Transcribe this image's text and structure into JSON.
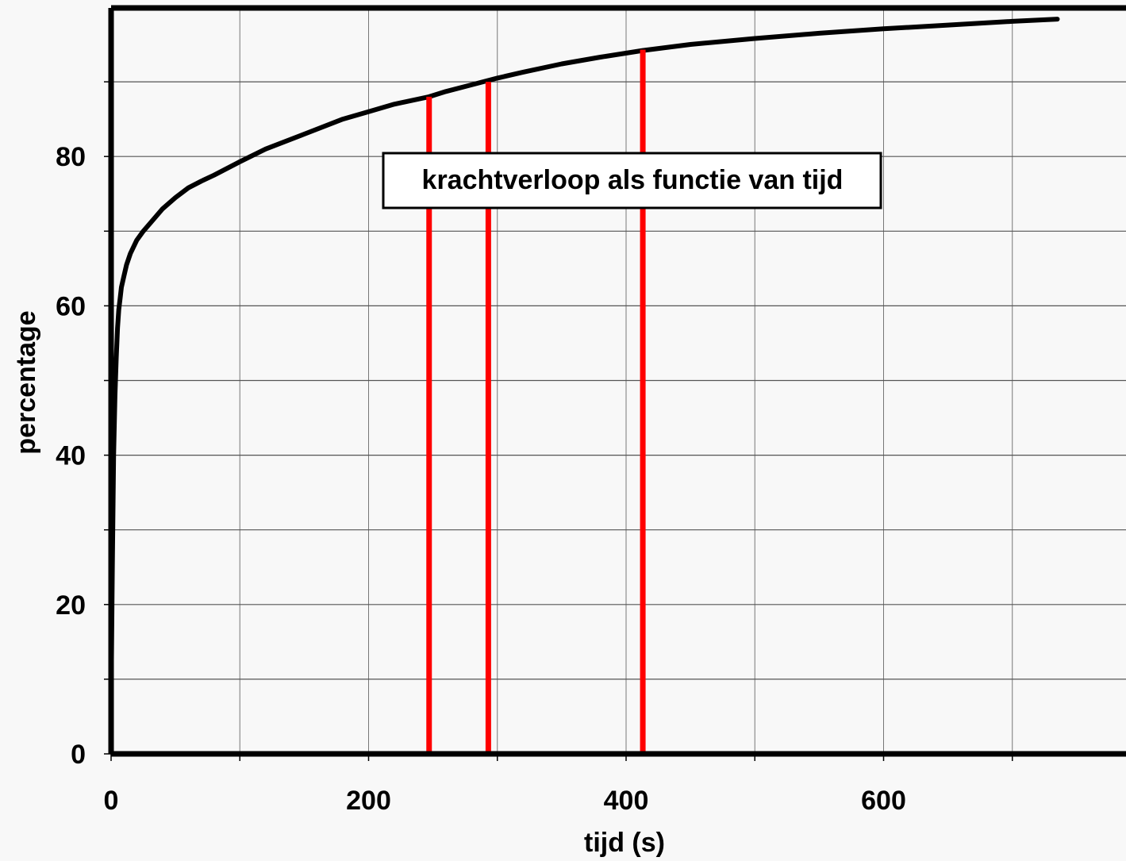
{
  "chart_data": {
    "type": "line",
    "title": "",
    "xlabel": "tijd (s)",
    "ylabel": "percentage",
    "xlim": [
      0,
      790
    ],
    "ylim": [
      0,
      100
    ],
    "grid": true,
    "x_ticks": [
      0,
      200,
      400,
      600
    ],
    "y_ticks": [
      0,
      20,
      40,
      60,
      80
    ],
    "annotation": "krachtverloop als functie van tijd",
    "series": [
      {
        "color": "#000000",
        "x": [
          0,
          1,
          2,
          3,
          4,
          5,
          6,
          7,
          8,
          10,
          12,
          15,
          20,
          25,
          30,
          40,
          50,
          60,
          70,
          80,
          100,
          120,
          150,
          180,
          200,
          220,
          247,
          260,
          280,
          300,
          320,
          350,
          380,
          413,
          450,
          500,
          550,
          600,
          650,
          700,
          735
        ],
        "y": [
          7,
          25,
          40,
          48,
          53,
          57,
          59.5,
          61,
          62.5,
          64,
          65.5,
          67,
          68.8,
          70,
          71,
          73,
          74.5,
          75.8,
          76.7,
          77.5,
          79.3,
          81,
          83,
          85,
          86,
          87,
          88,
          88.7,
          89.6,
          90.5,
          91.3,
          92.4,
          93.3,
          94.2,
          95,
          95.8,
          96.5,
          97.1,
          97.6,
          98.1,
          98.4
        ]
      }
    ],
    "vertical_lines": [
      {
        "x": 247,
        "y_top": 88,
        "color": "#ff0000"
      },
      {
        "x": 293,
        "y_top": 90,
        "color": "#ff0000"
      },
      {
        "x": 413,
        "y_top": 94.3,
        "color": "#ff0000"
      }
    ]
  }
}
